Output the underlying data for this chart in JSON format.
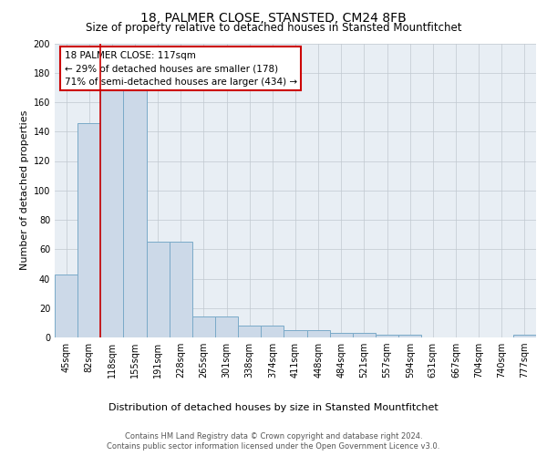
{
  "title": "18, PALMER CLOSE, STANSTED, CM24 8FB",
  "subtitle": "Size of property relative to detached houses in Stansted Mountfitchet",
  "xlabel": "Distribution of detached houses by size in Stansted Mountfitchet",
  "ylabel": "Number of detached properties",
  "categories": [
    "45sqm",
    "82sqm",
    "118sqm",
    "155sqm",
    "191sqm",
    "228sqm",
    "265sqm",
    "301sqm",
    "338sqm",
    "374sqm",
    "411sqm",
    "448sqm",
    "484sqm",
    "521sqm",
    "557sqm",
    "594sqm",
    "631sqm",
    "667sqm",
    "704sqm",
    "740sqm",
    "777sqm"
  ],
  "values": [
    43,
    146,
    168,
    168,
    65,
    65,
    14,
    14,
    8,
    8,
    5,
    5,
    3,
    3,
    2,
    2,
    0,
    0,
    0,
    0,
    2
  ],
  "bar_color": "#ccd9e8",
  "bar_edge_color": "#7aaac8",
  "vline_color": "#cc0000",
  "vline_x": 1.5,
  "annotation_text": "18 PALMER CLOSE: 117sqm\n← 29% of detached houses are smaller (178)\n71% of semi-detached houses are larger (434) →",
  "annotation_box_color": "white",
  "annotation_box_edge": "#cc0000",
  "ymax": 200,
  "yticks": [
    0,
    20,
    40,
    60,
    80,
    100,
    120,
    140,
    160,
    180,
    200
  ],
  "footer1": "Contains HM Land Registry data © Crown copyright and database right 2024.",
  "footer2": "Contains public sector information licensed under the Open Government Licence v3.0.",
  "bg_color": "#e8eef4",
  "grid_color": "#c0c8d0",
  "title_fontsize": 10,
  "subtitle_fontsize": 8.5,
  "ylabel_fontsize": 8,
  "xlabel_fontsize": 8,
  "tick_fontsize": 7,
  "annot_fontsize": 7.5,
  "footer_fontsize": 6
}
